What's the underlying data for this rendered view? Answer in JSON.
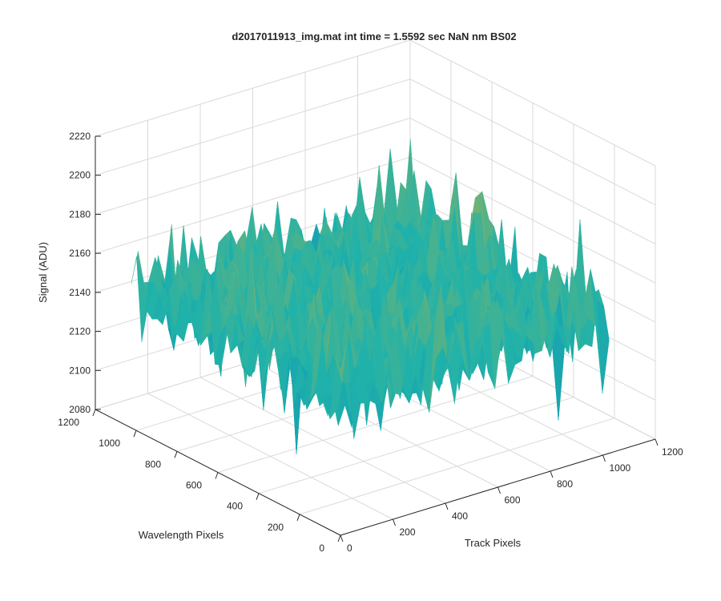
{
  "chart_data": {
    "type": "surface",
    "title": "d2017011913_img.mat int time = 1.5592 sec  NaN nm BS02",
    "xlabel": "Track Pixels",
    "ylabel": "Wavelength Pixels",
    "zlabel": "Signal (ADU)",
    "xlim": [
      0,
      1200
    ],
    "ylim": [
      0,
      1200
    ],
    "zlim": [
      2080,
      2220
    ],
    "x_ticks": [
      "0",
      "200",
      "400",
      "600",
      "800",
      "1000",
      "1200"
    ],
    "y_ticks": [
      "0",
      "200",
      "400",
      "600",
      "800",
      "1000",
      "1200"
    ],
    "z_ticks": [
      "2080",
      "2100",
      "2120",
      "2140",
      "2160",
      "2180",
      "2200",
      "2220"
    ],
    "surface_extent": {
      "x": [
        0,
        1024
      ],
      "y": [
        0,
        1024
      ]
    },
    "signal_mean": 2150,
    "signal_range": [
      2085,
      2212
    ],
    "grid": true,
    "colormap": "parula",
    "colors": {
      "low": "#0072BD",
      "mid": "#20B2AA",
      "high": "#EDB120",
      "grid": "#d9d9d9",
      "axis": "#262626"
    }
  }
}
